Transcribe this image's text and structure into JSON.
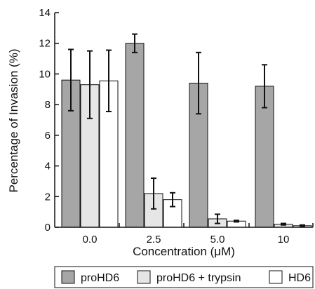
{
  "chart_data": {
    "type": "bar",
    "xlabel": "Concentration (μM)",
    "ylabel": "Percentage of Invasion (%)",
    "ylim": [
      0,
      14
    ],
    "yticks": [
      "0",
      "2",
      "4",
      "6",
      "8",
      "10",
      "12",
      "14"
    ],
    "categories": [
      "0.0",
      "2.5",
      "5.0",
      "10"
    ],
    "series": [
      {
        "name": "proHD6",
        "color": "#a6a6a6",
        "values": [
          9.6,
          12.0,
          9.4,
          9.2
        ],
        "errors": [
          2.0,
          0.6,
          2.0,
          1.4
        ]
      },
      {
        "name": "proHD6 + trypsin",
        "color": "#e6e6e6",
        "values": [
          9.3,
          2.2,
          0.55,
          0.2
        ],
        "errors": [
          2.2,
          1.0,
          0.3,
          0.05
        ]
      },
      {
        "name": "HD6",
        "color": "#ffffff",
        "values": [
          9.55,
          1.8,
          0.4,
          0.1
        ],
        "errors": [
          2.0,
          0.45,
          0.05,
          0.05
        ]
      }
    ],
    "grid": false,
    "legend_position": "bottom"
  }
}
